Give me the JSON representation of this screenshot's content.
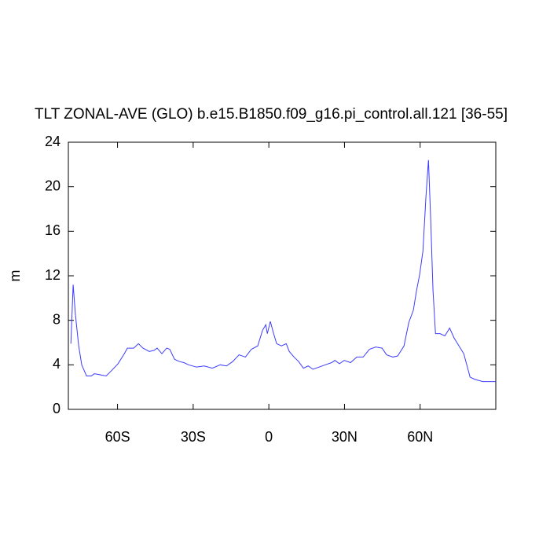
{
  "chart_data": {
    "type": "line",
    "title": "TLT ZONAL-AVE (GLO) b.e15.B1850.f09_g16.pi_control.all.121 [36-55]",
    "y_label": "m",
    "color": "#3c3cff",
    "x": [
      -78.5,
      -77.6,
      -76.7,
      -75.4,
      -74.2,
      -72.3,
      -70.4,
      -69.2,
      -66.7,
      -64.5,
      -62.3,
      -59.8,
      -57.3,
      -56.1,
      -53.6,
      -51.7,
      -49.9,
      -47.4,
      -45.5,
      -44.3,
      -42.4,
      -40.5,
      -39.3,
      -37.4,
      -35.5,
      -33.7,
      -31.8,
      -28.7,
      -25.6,
      -22.4,
      -19.3,
      -16.8,
      -14.3,
      -11.8,
      -9.3,
      -6.9,
      -4.4,
      -2.5,
      -1.2,
      -0.6,
      0.6,
      1.9,
      3.1,
      5.0,
      6.9,
      8.1,
      10.0,
      11.8,
      13.7,
      15.6,
      17.5,
      19.9,
      22.4,
      24.9,
      26.2,
      28.0,
      29.9,
      32.4,
      34.9,
      37.4,
      39.9,
      42.4,
      44.9,
      46.7,
      49.2,
      51.1,
      53.6,
      55.5,
      57.3,
      58.6,
      59.8,
      61.1,
      62.3,
      63.3,
      64.2,
      65.1,
      66.1,
      67.9,
      69.8,
      71.7,
      73.5,
      75.4,
      77.3,
      78.5,
      79.8,
      81.6,
      84.8,
      90.0
    ],
    "values": [
      5.9,
      11.2,
      8.5,
      5.7,
      4.0,
      3.0,
      3.0,
      3.2,
      3.1,
      3.0,
      3.5,
      4.1,
      5.0,
      5.5,
      5.5,
      5.9,
      5.5,
      5.2,
      5.3,
      5.5,
      5.0,
      5.5,
      5.4,
      4.5,
      4.3,
      4.2,
      4.0,
      3.8,
      3.9,
      3.7,
      4.0,
      3.9,
      4.3,
      4.9,
      4.7,
      5.4,
      5.7,
      7.1,
      7.6,
      6.8,
      7.9,
      6.8,
      5.9,
      5.7,
      5.9,
      5.2,
      4.7,
      4.3,
      3.7,
      3.9,
      3.6,
      3.8,
      4.0,
      4.2,
      4.4,
      4.1,
      4.4,
      4.2,
      4.7,
      4.7,
      5.4,
      5.6,
      5.5,
      4.9,
      4.7,
      4.8,
      5.7,
      7.8,
      8.9,
      10.7,
      12.1,
      14.2,
      19.1,
      22.4,
      17.0,
      10.7,
      6.8,
      6.8,
      6.6,
      7.3,
      6.4,
      5.7,
      5.0,
      4.0,
      2.9,
      2.7,
      2.5,
      2.5
    ],
    "xlim": [
      -79.5,
      90
    ],
    "xticks": [
      {
        "value": -60,
        "label": "60S"
      },
      {
        "value": -30,
        "label": "30S"
      },
      0,
      {
        "value": 30,
        "label": "30N"
      },
      {
        "value": 60,
        "label": "60N"
      }
    ],
    "ylim": [
      0,
      24
    ],
    "yticks": [
      0,
      4,
      8,
      12,
      16,
      20,
      24
    ]
  }
}
